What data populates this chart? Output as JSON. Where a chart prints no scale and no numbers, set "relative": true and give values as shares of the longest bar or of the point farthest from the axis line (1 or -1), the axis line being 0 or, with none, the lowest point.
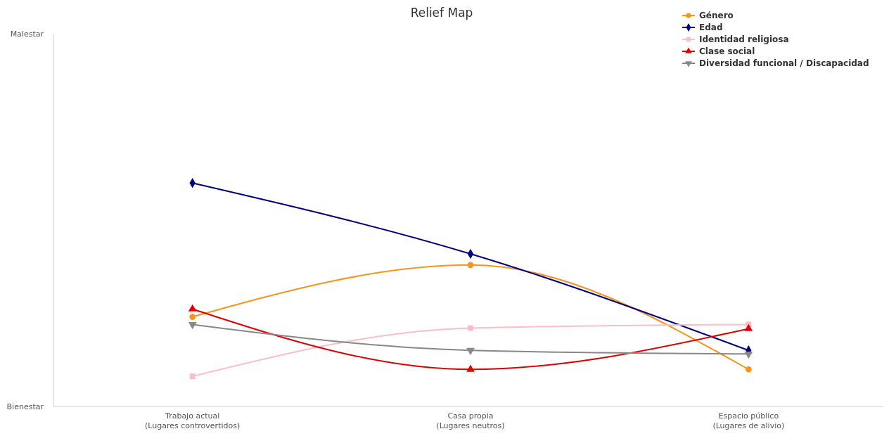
{
  "chart_data": {
    "type": "line",
    "title": "Relief Map",
    "categories": [
      "Trabajo actual\n(Lugares controvertidos)",
      "Casa propia\n(Lugares neutros)",
      "Espacio público\n(Lugares de alivio)"
    ],
    "relative": true,
    "annotations": [
      "Malestar",
      "Bienestar"
    ],
    "series": [
      {
        "name": "Género",
        "color": "#f7941d",
        "marker": "circle",
        "values": [
          0.401,
          0.633,
          0.166
        ]
      },
      {
        "name": "Edad",
        "color": "#000080",
        "marker": "diamond",
        "values": [
          1,
          0.683,
          0.251
        ]
      },
      {
        "name": "Identidad religiosa",
        "color": "#f8bfcb",
        "marker": "square",
        "values": [
          0.135,
          0.351,
          0.367
        ]
      },
      {
        "name": "Clase social",
        "color": "#e00000",
        "marker": "triangle",
        "values": [
          0.436,
          0.166,
          0.348
        ]
      },
      {
        "name": "Diversidad funcional / Discapacidad",
        "color": "#888888",
        "marker": "triangle-down",
        "values": [
          0.367,
          0.251,
          0.235
        ]
      }
    ],
    "legend": "top right"
  }
}
